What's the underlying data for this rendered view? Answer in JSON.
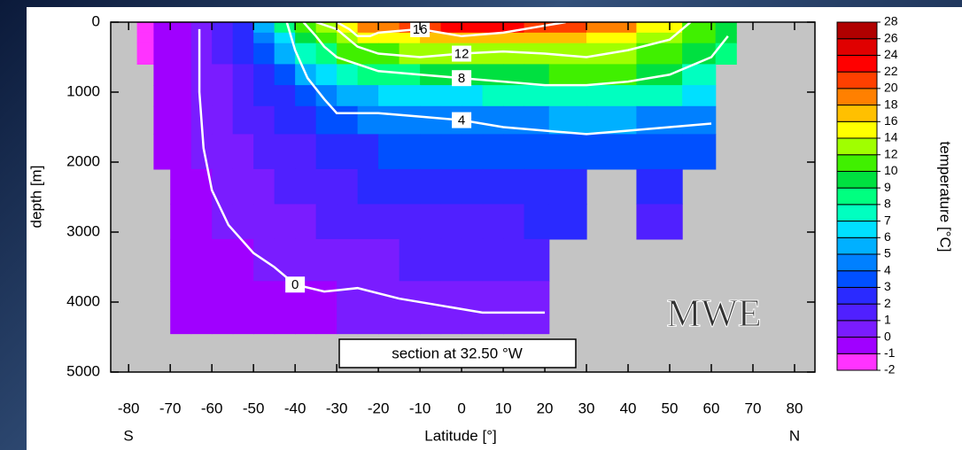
{
  "chart_data": {
    "type": "contour",
    "annotation": "section at 32.50 °W",
    "model_label": "MWE",
    "x_label": "Latitude [°]",
    "y_label": "depth [m]",
    "colorbar_label": "temperature [°C]",
    "x_left_label": "S",
    "x_right_label": "N",
    "xlim": [
      -84.3,
      84.9
    ],
    "ylim": [
      0,
      5000
    ],
    "xticks": [
      -80,
      -70,
      -60,
      -50,
      -40,
      -30,
      -20,
      -10,
      0,
      10,
      20,
      30,
      40,
      50,
      60,
      70,
      80
    ],
    "yticks": [
      0,
      1000,
      2000,
      3000,
      4000,
      5000
    ],
    "land_color": "#c4c4c4",
    "levels": [
      -2,
      -1,
      0,
      1,
      2,
      3,
      4,
      5,
      6,
      7,
      8,
      9,
      10,
      12,
      14,
      16,
      18,
      20,
      22,
      24,
      26,
      28
    ],
    "colors": [
      "#ff33ff",
      "#a000ff",
      "#7a1cff",
      "#5020ff",
      "#2a2aff",
      "#0050ff",
      "#0080ff",
      "#00b0ff",
      "#00e0ff",
      "#00ffc0",
      "#00ff80",
      "#00e040",
      "#40f000",
      "#a0ff00",
      "#ffff00",
      "#ffc000",
      "#ff8000",
      "#ff4000",
      "#ff0000",
      "#e00000",
      "#b00000"
    ],
    "x_edges": [
      -78,
      -74,
      -70,
      -65,
      -60,
      -55,
      -50,
      -45,
      -40,
      -35,
      -30,
      -25,
      -20,
      -15,
      -10,
      -5,
      0,
      5,
      10,
      15,
      21,
      30,
      42,
      53,
      61,
      66
    ],
    "y_edges": [
      0,
      150,
      300,
      600,
      900,
      1200,
      1600,
      2100,
      2600,
      3100,
      3700,
      4450
    ],
    "z": [
      [
        -1.5,
        -0.5,
        -0.5,
        0.5,
        1.5,
        2.5,
        5,
        8,
        11,
        13,
        15,
        18,
        19,
        20,
        21,
        22,
        23,
        23,
        22,
        21,
        20,
        18,
        14,
        11,
        9
      ],
      [
        -1.5,
        -0.5,
        -0.5,
        0.5,
        1.5,
        2.5,
        4.5,
        6.5,
        9,
        11,
        12.5,
        14,
        15,
        15.5,
        16,
        17,
        17,
        17,
        17,
        16.5,
        16,
        15,
        12,
        10,
        9
      ],
      [
        -1.5,
        -0.5,
        -0.5,
        0.5,
        1,
        2,
        3.5,
        5,
        7,
        8.5,
        10,
        11,
        11,
        12,
        12.5,
        12.5,
        12.5,
        12.8,
        13,
        13,
        13,
        12.5,
        11,
        9,
        8
      ],
      [
        null,
        -0.5,
        -0.5,
        0.5,
        0.8,
        1.5,
        2.5,
        3.5,
        5,
        6,
        7,
        8,
        8.5,
        8.8,
        9,
        9.2,
        9.2,
        9.4,
        9.6,
        9.8,
        10,
        10,
        9,
        7.5,
        null
      ],
      [
        null,
        -0.5,
        -0.5,
        0.4,
        0.6,
        1.2,
        2,
        2.8,
        3.8,
        4.5,
        5,
        5.5,
        6,
        6.5,
        6.5,
        6.8,
        6.8,
        7,
        7.2,
        7.2,
        7.5,
        7.5,
        7,
        6,
        null
      ],
      [
        null,
        -0.5,
        -0.5,
        0.3,
        0.6,
        1,
        1.5,
        2,
        2.5,
        3.5,
        3.8,
        4,
        4.3,
        4.4,
        4.5,
        4.6,
        4.6,
        4.7,
        4.8,
        4.8,
        5,
        5,
        4.8,
        4.5,
        null
      ],
      [
        null,
        -0.5,
        -0.5,
        0.2,
        0.6,
        0.8,
        1.2,
        1.5,
        1.8,
        2.2,
        2.5,
        2.8,
        3,
        3,
        3.1,
        3.2,
        3.3,
        3.4,
        3.4,
        3.5,
        3.6,
        3.8,
        3.8,
        3.5,
        null
      ],
      [
        null,
        null,
        -0.5,
        -0.3,
        0.3,
        0.6,
        0.8,
        1,
        1.2,
        1.5,
        1.8,
        2,
        2.1,
        2.2,
        2.2,
        2.3,
        2.4,
        2.5,
        2.5,
        2.6,
        2.7,
        null,
        2.5,
        null,
        null
      ],
      [
        null,
        null,
        -0.5,
        -0.5,
        0,
        0.3,
        0.5,
        0.6,
        0.8,
        1,
        1.2,
        1.4,
        1.5,
        1.6,
        1.6,
        1.7,
        1.8,
        1.8,
        1.9,
        2,
        2,
        null,
        1.5,
        null,
        null
      ],
      [
        null,
        null,
        -0.5,
        -0.5,
        -0.5,
        -0.3,
        0.2,
        0.3,
        0.5,
        0.6,
        0.7,
        0.8,
        0.9,
        1,
        1,
        1.1,
        1.1,
        1.2,
        1.2,
        1.3,
        null,
        null,
        null,
        null,
        null
      ],
      [
        null,
        null,
        -0.5,
        -0.5,
        -0.5,
        -0.5,
        -0.5,
        -0.5,
        -0.2,
        -0.2,
        0.1,
        0.2,
        0.2,
        0.3,
        0.3,
        0.3,
        0.2,
        0.2,
        0.2,
        0.3,
        null,
        null,
        null,
        null,
        null
      ]
    ],
    "contours": [
      {
        "level": 0,
        "x": [
          -63,
          -63,
          -62,
          -60,
          -56,
          -50,
          -45,
          -40,
          -33,
          -25,
          -15,
          -5,
          5,
          15,
          20
        ],
        "y": [
          100,
          1000,
          1800,
          2400,
          2900,
          3300,
          3500,
          3750,
          3850,
          3800,
          3950,
          4050,
          4150,
          4150,
          4150
        ]
      },
      {
        "level": 4,
        "x": [
          -42,
          -40,
          -37,
          -33,
          -30,
          -20,
          -10,
          0,
          10,
          20,
          30,
          40,
          50,
          60
        ],
        "y": [
          0,
          400,
          800,
          1100,
          1300,
          1300,
          1350,
          1400,
          1500,
          1550,
          1600,
          1550,
          1500,
          1450
        ]
      },
      {
        "level": 8,
        "x": [
          -38,
          -35,
          -33,
          -30,
          -25,
          -20,
          -10,
          0,
          10,
          20,
          30,
          40,
          50,
          60,
          64
        ],
        "y": [
          0,
          200,
          350,
          500,
          600,
          700,
          750,
          800,
          850,
          900,
          900,
          850,
          750,
          500,
          200
        ]
      },
      {
        "level": 12,
        "x": [
          -35,
          -30,
          -28,
          -25,
          -20,
          -10,
          0,
          10,
          20,
          30,
          40,
          50,
          55
        ],
        "y": [
          0,
          100,
          200,
          350,
          450,
          500,
          450,
          420,
          450,
          500,
          400,
          250,
          0
        ]
      },
      {
        "level": 16,
        "x": [
          -30,
          -27,
          -25,
          -22,
          -20,
          -10,
          0,
          10,
          20,
          25
        ],
        "y": [
          0,
          100,
          200,
          200,
          150,
          100,
          200,
          150,
          50,
          0
        ]
      }
    ]
  }
}
